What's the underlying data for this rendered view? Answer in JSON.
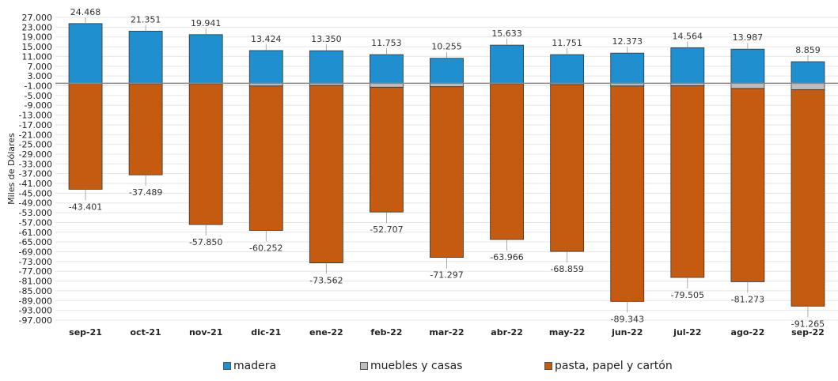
{
  "chart_data": {
    "type": "bar",
    "stacked": true,
    "ylabel": "Miles de Dólares",
    "categories": [
      "sep-21",
      "oct-21",
      "nov-21",
      "dic-21",
      "ene-22",
      "feb-22",
      "mar-22",
      "abr-22",
      "may-22",
      "jun-22",
      "jul-22",
      "ago-22",
      "sep-22"
    ],
    "series": [
      {
        "name": "madera",
        "color": "#1f8fd0",
        "values": [
          24468,
          21351,
          19941,
          13424,
          13350,
          11753,
          10255,
          15633,
          11751,
          12373,
          14564,
          13987,
          8859
        ]
      },
      {
        "name": "muebles y casas",
        "color": "#bdbdbd",
        "values": [
          -100,
          -200,
          -200,
          -1100,
          -900,
          -1600,
          -1400,
          -200,
          -500,
          -1100,
          -1000,
          -2100,
          -2600
        ]
      },
      {
        "name": "pasta, papel y cartón",
        "color": "#c55a11",
        "values": [
          -43301,
          -37289,
          -57650,
          -59152,
          -72662,
          -51107,
          -69897,
          -63766,
          -68359,
          -88243,
          -78505,
          -79173,
          -88665
        ]
      }
    ],
    "negative_totals": [
      -43401,
      -37489,
      -57850,
      -60252,
      -73562,
      -52707,
      -71297,
      -63966,
      -68859,
      -89343,
      -79505,
      -81273,
      -91265
    ],
    "data_labels_positive": [
      "24.468",
      "21.351",
      "19.941",
      "13.424",
      "13.350",
      "11.753",
      "10.255",
      "15.633",
      "11.751",
      "12.373",
      "14.564",
      "13.987",
      "8.859"
    ],
    "data_labels_negative": [
      "-43.401",
      "-37.489",
      "-57.850",
      "-60.252",
      "-73.562",
      "-52.707",
      "-71.297",
      "-63.966",
      "-68.859",
      "-89.343",
      "-79.505",
      "-81.273",
      "-91.265"
    ],
    "ylim": [
      -97000,
      27000
    ],
    "y_ticks": [
      "27.000",
      "23.000",
      "19.000",
      "15.000",
      "11.000",
      "7.000",
      "3.000",
      "-1.000",
      "-5.000",
      "-9.000",
      "-13.000",
      "-17.000",
      "-21.000",
      "-25.000",
      "-29.000",
      "-33.000",
      "-37.000",
      "-41.000",
      "-45.000",
      "-49.000",
      "-53.000",
      "-57.000",
      "-61.000",
      "-65.000",
      "-69.000",
      "-73.000",
      "-77.000",
      "-81.000",
      "-85.000",
      "-89.000",
      "-93.000",
      "-97.000"
    ],
    "grid": true,
    "legend_position": "bottom"
  }
}
